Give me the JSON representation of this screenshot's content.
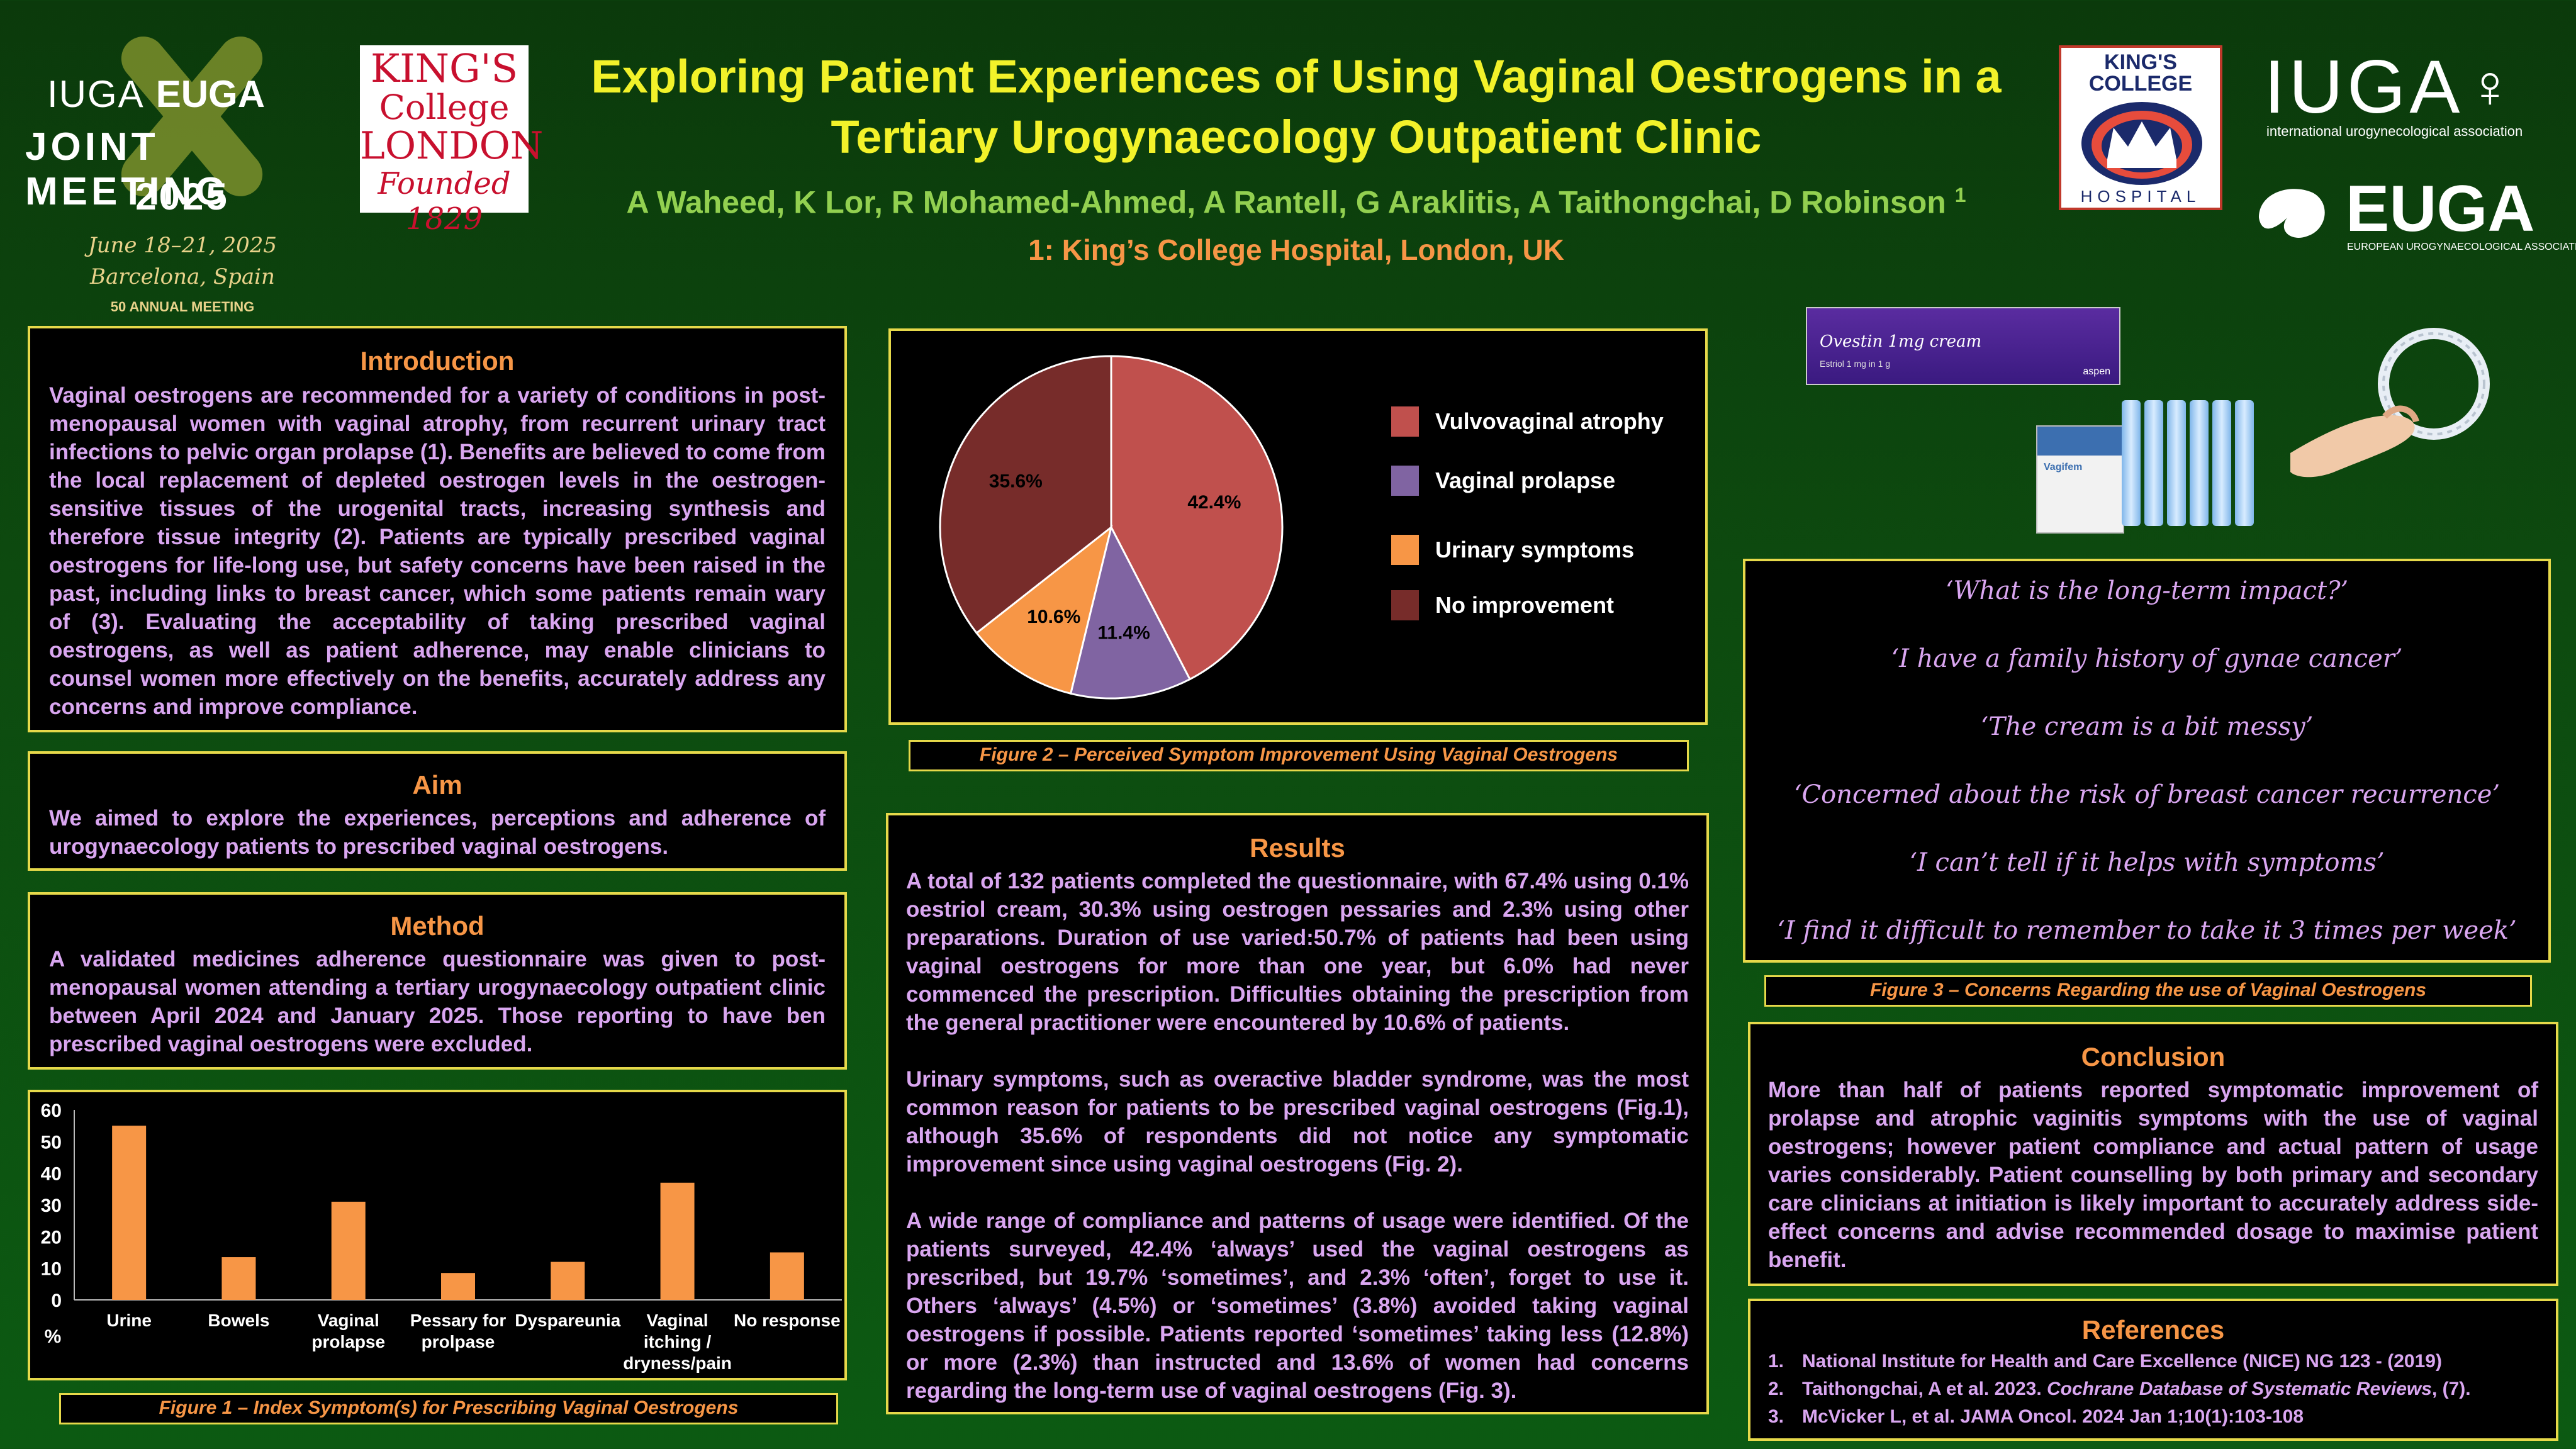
{
  "header": {
    "title_line1": "Exploring Patient Experiences of Using Vaginal Oestrogens in a",
    "title_line2": "Tertiary Urogynaecology Outpatient Clinic",
    "authors": "A Waheed, K Lor, R Mohamed-Ahmed, A Rantell, G Araklitis,  A Taithongchai, D Robinson",
    "authors_sup": "1",
    "affiliation": "1: King’s College Hospital, London, UK"
  },
  "logos": {
    "meeting": {
      "iuga": "IUGA",
      "euga": "EUGA",
      "joint": "JOINT MEETING",
      "year": "2025",
      "dates": "June 18–21, 2025",
      "city": "Barcelona, Spain",
      "annual": "50 ANNUAL MEETING"
    },
    "kcl": {
      "line1": "KING'S",
      "line2": "College",
      "line3": "LONDON",
      "line4": "Founded 1829"
    },
    "kch": {
      "top": "KING'S COLLEGE",
      "bottom": "HOSPITAL"
    },
    "iuga": {
      "name": "IUGA",
      "sub": "international urogynecological association"
    },
    "euga": {
      "name": "EUGA",
      "sub": "EUROPEAN UROGYNAECOLOGICAL ASSOCIATION"
    }
  },
  "introduction": {
    "title": "Introduction",
    "text": "Vaginal oestrogens are recommended for a variety of conditions in post-menopausal women with vaginal atrophy, from recurrent urinary tract infections to pelvic organ prolapse (1). Benefits are believed to come from the local replacement of depleted oestrogen levels in the oestrogen-sensitive tissues of the urogenital tracts, increasing synthesis and therefore tissue integrity (2). Patients are typically prescribed vaginal oestrogens for life-long use, but safety concerns have been raised in the past, including links to breast cancer, which some patients remain wary of (3). Evaluating the acceptability of taking prescribed vaginal oestrogens, as well as patient adherence, may enable clinicians to counsel women more effectively on  the benefits, accurately address any concerns and improve compliance."
  },
  "aim": {
    "title": "Aim",
    "text": "We aimed to explore the experiences, perceptions and adherence of urogynaecology patients to prescribed vaginal oestrogens."
  },
  "method": {
    "title": "Method",
    "text": "A validated medicines adherence questionnaire was given to post-menopausal women attending a tertiary urogynaecology outpatient clinic between April 2024 and January 2025. Those reporting to have ben prescribed vaginal oestrogens were excluded."
  },
  "figure1_caption": "Figure 1 – Index Symptom(s) for Prescribing Vaginal Oestrogens",
  "figure2_caption": "Figure 2 – Perceived Symptom Improvement Using Vaginal Oestrogens",
  "figure3_caption": "Figure 3 – Concerns Regarding the use of Vaginal Oestrogens",
  "results": {
    "title": "Results",
    "p1": "A total of 132 patients completed the questionnaire, with 67.4% using 0.1% oestriol cream, 30.3% using oestrogen pessaries and 2.3% using other preparations. Duration of use varied:50.7% of patients had been using vaginal oestrogens for more than one year, but 6.0% had never commenced the prescription. Difficulties obtaining the prescription from the general practitioner were encountered by 10.6% of patients.",
    "p2": "Urinary symptoms, such as overactive bladder syndrome, was the most common reason for patients to be prescribed vaginal oestrogens (Fig.1), although 35.6% of respondents did not notice any symptomatic improvement since using vaginal oestrogens (Fig. 2).",
    "p3": "A wide range of compliance and patterns of usage were identified. Of the patients surveyed, 42.4% ‘always’ used the vaginal oestrogens as prescribed, but 19.7% ‘sometimes’, and 2.3% ‘often’, forget to use it. Others ‘always’ (4.5%) or ‘sometimes’ (3.8%) avoided taking vaginal oestrogens if possible. Patients reported ‘sometimes’ taking less (12.8%) or more (2.3%) than instructed and 13.6% of women had concerns regarding the long-term use of vaginal oestrogens (Fig. 3)."
  },
  "quotes": [
    "‘What is the long-term impact?’",
    "‘I have a family history of gynae cancer’",
    "‘The cream is a bit messy’",
    "‘Concerned about the risk of breast cancer recurrence’",
    "‘I can’t tell if it helps with symptoms’",
    "‘I find it difficult to remember to take it 3 times per week’"
  ],
  "product_images": {
    "cream_box_label": "Ovestin 1mg cream",
    "cream_box_sub": "Estriol 1 mg in 1 g",
    "brand": "aspen",
    "pessary_label": "Vagifem"
  },
  "conclusion": {
    "title": "Conclusion",
    "text": "More than half of patients reported symptomatic improvement of prolapse and atrophic vaginitis symptoms with the use of vaginal oestrogens; however patient compliance and actual pattern of usage varies considerably. Patient counselling by both primary and secondary care clinicians at initiation is likely important to accurately address side-effect concerns and advise recommended dosage to maximise patient benefit."
  },
  "references": {
    "title": "References",
    "items": [
      {
        "num": "1.",
        "text": "National Institute for Health and Care Excellence (NICE) NG 123 - (2019)"
      },
      {
        "num": "2.",
        "pre": "Taithongchai, A et al. 2023. ",
        "italic": "Cochrane Database of Systematic Reviews",
        "post": ", (7)."
      },
      {
        "num": "3.",
        "text": "McVicker L, et al. JAMA Oncol. 2024 Jan 1;10(1):103-108"
      }
    ]
  },
  "colors": {
    "box_border": "#e6d94a",
    "title_green": "#f2f22a",
    "author_green": "#92d050",
    "orange": "#f79646",
    "body_purple": "#d9a6f0"
  },
  "chart_data": [
    {
      "type": "bar",
      "title": "",
      "categories": [
        "Urine",
        "Bowels",
        "Vaginal prolapse",
        "Pessary for prolpase",
        "Dyspareunia",
        "Vaginal itching / dryness/pain",
        "No response"
      ],
      "category_lines": [
        [
          "Urine"
        ],
        [
          "Bowels"
        ],
        [
          "Vaginal",
          "prolapse"
        ],
        [
          "Pessary for",
          "prolpase"
        ],
        [
          "Dyspareunia"
        ],
        [
          "Vaginal",
          "itching /",
          "dryness/pain"
        ],
        [
          "No response"
        ]
      ],
      "values": [
        55,
        13.5,
        31,
        8.5,
        12,
        37,
        15
      ],
      "ylabel": "%",
      "ylim": [
        0,
        60
      ],
      "yticks": [
        0,
        10,
        20,
        30,
        40,
        50,
        60
      ],
      "bar_color": "#f79646",
      "grid": false
    },
    {
      "type": "pie",
      "labels": [
        "Vulvovaginal atrophy",
        "Vaginal prolapse",
        "Urinary symptoms",
        "No improvement"
      ],
      "values": [
        42.4,
        11.4,
        10.6,
        35.6
      ],
      "value_labels": [
        "42.4%",
        "11.4%",
        "10.6%",
        "35.6%"
      ],
      "colors": [
        "#c0504d",
        "#8064a2",
        "#f79646",
        "#772c2a"
      ],
      "legend": "right"
    }
  ]
}
